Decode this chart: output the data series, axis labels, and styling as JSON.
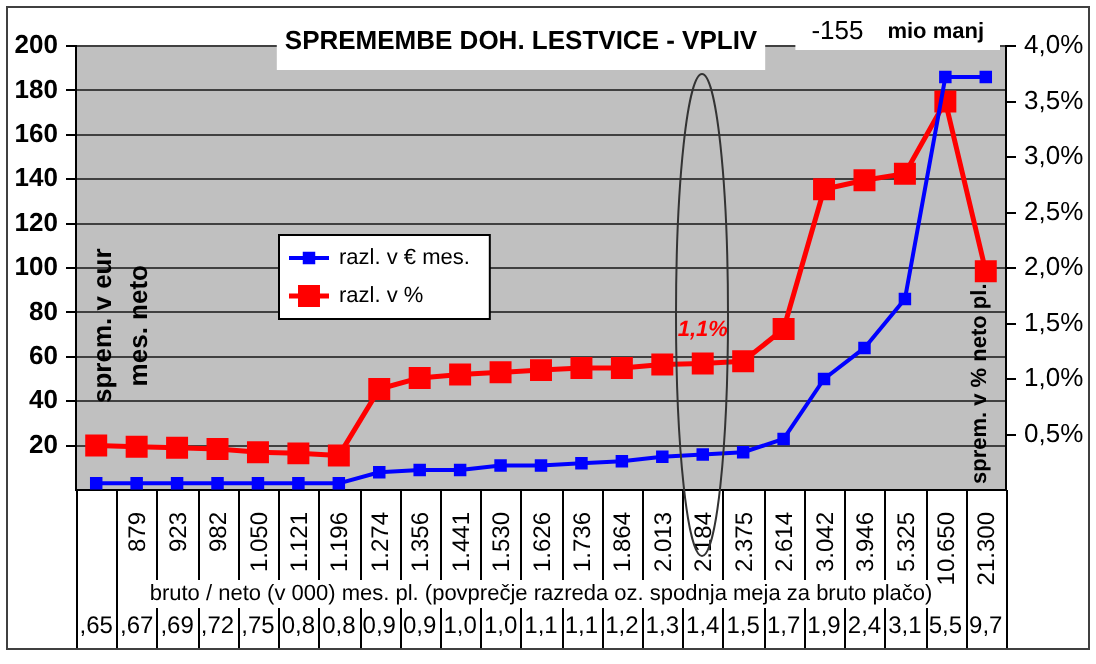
{
  "chart_data": {
    "type": "line",
    "title": "SPREMEMBE DOH. LESTVICE - VPLIV",
    "xlabel": "bruto / neto (v 000) mes. pl. (povprečje razreda oz. spodnja meja za bruto plačo)",
    "ylabel": "sprem. v eur mes. neto",
    "y2label": "sprem. v % neto pl.",
    "categories": [
      null,
      "879",
      "923",
      "982",
      "1.050",
      "1.121",
      "1.196",
      "1.274",
      "1.356",
      "1.441",
      "1.530",
      "1.626",
      "1.736",
      "1.864",
      "2.013",
      "2.184",
      "2.375",
      "2.614",
      "3.042",
      "3.946",
      "5.325",
      "10.650",
      "21.300"
    ],
    "series": [
      {
        "name": "razl. v € mes.",
        "color": "#0000ff",
        "values": [
          3,
          3,
          3,
          3,
          3,
          3,
          3,
          8,
          9,
          9,
          11,
          11,
          12,
          13,
          15,
          16,
          17,
          23,
          50,
          64,
          86,
          186,
          186
        ]
      },
      {
        "name": "razl. v %",
        "color": "#ff0000",
        "axis": "y2",
        "values": [
          0.4,
          0.39,
          0.38,
          0.37,
          0.34,
          0.33,
          0.31,
          0.91,
          1.01,
          1.04,
          1.06,
          1.08,
          1.1,
          1.1,
          1.13,
          1.14,
          1.16,
          1.45,
          2.71,
          2.79,
          2.85,
          3.5,
          1.97
        ]
      }
    ],
    "ylim": [
      0,
      200
    ],
    "yticks": [
      20,
      40,
      60,
      80,
      100,
      120,
      140,
      160,
      180,
      200
    ],
    "y2lim": [
      0,
      4
    ],
    "y2ticks": [
      {
        "value": 0.5,
        "label": "0,5%"
      },
      {
        "value": 1,
        "label": "1,0%"
      },
      {
        "value": 1.5,
        "label": "1,5%"
      },
      {
        "value": 2,
        "label": "2,0%"
      },
      {
        "value": 2.5,
        "label": "2,5%"
      },
      {
        "value": 3,
        "label": "3,0%"
      },
      {
        "value": 3.5,
        "label": "3,5%"
      },
      {
        "value": 4,
        "label": "4,0%"
      }
    ],
    "grid": "y",
    "legend": "left",
    "marker": "square",
    "line_style": "solid",
    "annotations": [
      "1,1%",
      ",65",
      ",67",
      ",69",
      ",72",
      ",75",
      "0,8",
      "0,8",
      "0,9",
      "0,9",
      "1,0",
      "1,0",
      "1,1",
      "1,1",
      "1,2",
      "1,3",
      "1,4",
      "1,5",
      "1,7",
      "1,9",
      "2,4",
      "3,1",
      "5,5",
      "9,7",
      "-155",
      "mio manj"
    ]
  }
}
